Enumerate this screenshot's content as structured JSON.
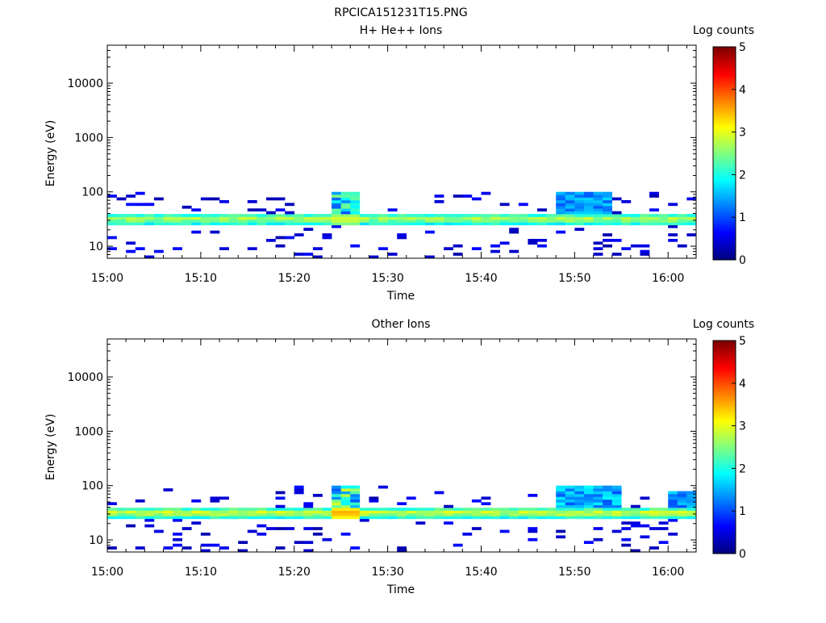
{
  "figure_title": "RPCICA151231T15.PNG",
  "chart_data": [
    {
      "type": "heatmap",
      "title": "H+ He++ Ions",
      "xlabel": "Time",
      "ylabel": "Energy (eV)",
      "x_ticks": [
        "15:00",
        "15:10",
        "15:20",
        "15:30",
        "15:40",
        "15:50",
        "16:00"
      ],
      "x_range": [
        "15:00",
        "16:03"
      ],
      "y_ticks": [
        "10",
        "100",
        "1000",
        "10000"
      ],
      "ylim": [
        6,
        50000
      ],
      "y_scale": "log",
      "colorbar": {
        "label": "Log counts",
        "range": [
          0,
          5
        ],
        "ticks": [
          "0",
          "1",
          "2",
          "3",
          "4",
          "5"
        ]
      },
      "colormap": "rainbow (blue-cyan-green-yellow-red)",
      "description_band": {
        "core_energy_eV": [
          25,
          40
        ],
        "core_log_counts": [
          1.8,
          2.8
        ],
        "sparse_energy_eV": [
          6,
          100
        ],
        "enhancements": [
          {
            "time": "15:24-15:26",
            "energy_eV": [
              25,
              95
            ],
            "peak_log_counts": 3.0
          },
          {
            "time": "15:48-15:53",
            "energy_eV": [
              25,
              100
            ],
            "peak_log_counts": 2.2
          }
        ]
      }
    },
    {
      "type": "heatmap",
      "title": "Other Ions",
      "xlabel": "Time",
      "ylabel": "Energy (eV)",
      "x_ticks": [
        "15:00",
        "15:10",
        "15:20",
        "15:30",
        "15:40",
        "15:50",
        "16:00"
      ],
      "x_range": [
        "15:00",
        "16:03"
      ],
      "y_ticks": [
        "10",
        "100",
        "1000",
        "10000"
      ],
      "ylim": [
        6,
        50000
      ],
      "y_scale": "log",
      "colorbar": {
        "label": "Log counts",
        "range": [
          0,
          5
        ],
        "ticks": [
          "0",
          "1",
          "2",
          "3",
          "4",
          "5"
        ]
      },
      "colormap": "rainbow (blue-cyan-green-yellow-red)",
      "description_band": {
        "core_energy_eV": [
          25,
          40
        ],
        "core_log_counts": [
          1.8,
          3.0
        ],
        "sparse_energy_eV": [
          6,
          100
        ],
        "enhancements": [
          {
            "time": "15:24-15:26",
            "energy_eV": [
              25,
              95
            ],
            "peak_log_counts": 3.6
          },
          {
            "time": "15:48-15:54",
            "energy_eV": [
              25,
              100
            ],
            "peak_log_counts": 2.4
          },
          {
            "time": "16:00-16:03",
            "energy_eV": [
              25,
              80
            ],
            "peak_log_counts": 2.2
          }
        ]
      }
    }
  ]
}
